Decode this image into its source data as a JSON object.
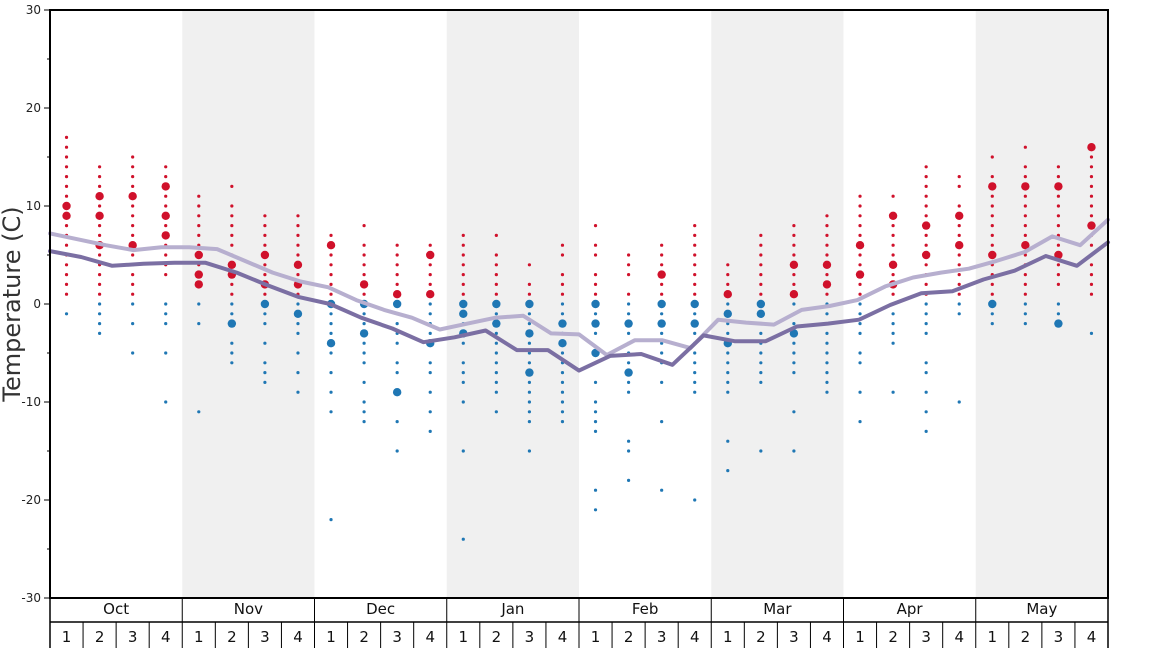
{
  "chart_data": {
    "type": "scatter",
    "title": "",
    "ylabel": "Temperature (C)",
    "xlabel": "",
    "ylim": [
      -30,
      30
    ],
    "yticks": [
      30,
      20,
      10,
      0,
      -10,
      -20,
      -30
    ],
    "months": [
      "Oct",
      "Nov",
      "Dec",
      "Jan",
      "Feb",
      "Mar",
      "Apr",
      "May"
    ],
    "weeks": [
      "1",
      "2",
      "3",
      "4"
    ],
    "colors": {
      "warm_dot": "#d0112b",
      "cold_dot": "#1f77b4",
      "upper_line": "#b7afcf",
      "lower_line": "#7b6fa3",
      "band_shade": "#f0f0f0"
    },
    "series": [
      {
        "kind": "line",
        "values": [
          7.2,
          6.6,
          6,
          5.5,
          5.8,
          5.8,
          5.6,
          4.4,
          3.2,
          2.3,
          1.7,
          0.4,
          -0.6,
          -1.4,
          -2.6,
          -2,
          -1.4,
          -1.2,
          -3,
          -3.1,
          -5.2,
          -3.7,
          -3.7,
          -4.5,
          -1.6,
          -1.9,
          -2.1,
          -0.6,
          -0.2,
          0.4,
          1.8,
          2.7,
          3.2,
          3.6,
          4.4,
          5.3,
          6.9,
          6,
          8.6
        ]
      },
      {
        "kind": "line",
        "values": [
          5.4,
          4.8,
          3.9,
          4.1,
          4.2,
          4.2,
          3.2,
          1.9,
          0.7,
          0,
          -1.4,
          -2.5,
          -3.9,
          -3.4,
          -2.7,
          -4.7,
          -4.7,
          -6.8,
          -5.3,
          -5.1,
          -6.2,
          -3.2,
          -3.8,
          -3.8,
          -2.3,
          -2,
          -1.6,
          -0.1,
          1.1,
          1.3,
          2.5,
          3.4,
          4.9,
          3.9,
          6.3
        ]
      }
    ],
    "dots": [
      {
        "x": 1,
        "values": [
          17,
          16,
          15,
          14,
          13,
          12,
          11,
          10,
          9,
          8,
          7,
          6,
          5,
          4,
          3,
          2,
          1,
          -1
        ],
        "big": [
          9,
          10
        ]
      },
      {
        "x": 2,
        "values": [
          14,
          13,
          12,
          11,
          10,
          9,
          8,
          7,
          6,
          5,
          4,
          3,
          2,
          1,
          0,
          -1,
          -2,
          -3
        ],
        "big": [
          11,
          9,
          6
        ]
      },
      {
        "x": 3,
        "values": [
          15,
          14,
          13,
          12,
          11,
          10,
          9,
          8,
          7,
          6,
          5,
          4,
          3,
          2,
          1,
          0,
          -2,
          -5
        ],
        "big": [
          11,
          6
        ]
      },
      {
        "x": 4,
        "values": [
          14,
          13,
          12,
          11,
          10,
          9,
          8,
          7,
          6,
          5,
          4,
          3,
          0,
          -1,
          -2,
          -5,
          -10
        ],
        "big": [
          12,
          9,
          7
        ]
      },
      {
        "x": 5,
        "values": [
          11,
          10,
          9,
          8,
          7,
          6,
          5,
          4,
          3,
          2,
          0,
          -2,
          -11
        ],
        "big": [
          5,
          2,
          3
        ]
      },
      {
        "x": 6,
        "values": [
          12,
          10,
          9,
          8,
          7,
          6,
          5,
          4,
          3,
          2,
          1,
          0,
          -1,
          -2,
          -4,
          -5,
          -6
        ],
        "big": [
          4,
          3,
          -2
        ]
      },
      {
        "x": 7,
        "values": [
          9,
          8,
          7,
          6,
          5,
          4,
          3,
          2,
          1,
          0,
          -1,
          -2,
          -4,
          -6,
          -7,
          -8
        ],
        "big": [
          5,
          2,
          0
        ]
      },
      {
        "x": 8,
        "values": [
          9,
          8,
          7,
          6,
          5,
          4,
          3,
          2,
          1,
          0,
          -1,
          -2,
          -3,
          -5,
          -7,
          -9
        ],
        "big": [
          4,
          2,
          -1
        ]
      },
      {
        "x": 9,
        "values": [
          7,
          6,
          5,
          4,
          3,
          2,
          1,
          0,
          -1,
          -2,
          -3,
          -4,
          -5,
          -7,
          -9,
          -11,
          -22
        ],
        "big": [
          6,
          0,
          -4
        ]
      },
      {
        "x": 10,
        "values": [
          8,
          6,
          5,
          4,
          3,
          2,
          1,
          0,
          -1,
          -2,
          -3,
          -4,
          -5,
          -6,
          -8,
          -10,
          -11,
          -12
        ],
        "big": [
          2,
          0,
          -3
        ]
      },
      {
        "x": 11,
        "values": [
          6,
          5,
          4,
          3,
          2,
          1,
          0,
          -1,
          -2,
          -3,
          -4,
          -6,
          -7,
          -9,
          -12,
          -15
        ],
        "big": [
          1,
          0,
          -9
        ]
      },
      {
        "x": 12,
        "values": [
          6,
          5,
          4,
          3,
          2,
          1,
          0,
          -1,
          -2,
          -3,
          -4,
          -6,
          -7,
          -9,
          -11,
          -13
        ],
        "big": [
          5,
          1,
          -4
        ]
      },
      {
        "x": 13,
        "values": [
          7,
          6,
          5,
          4,
          3,
          2,
          1,
          0,
          -1,
          -2,
          -3,
          -4,
          -6,
          -7,
          -8,
          -10,
          -15,
          -24
        ],
        "big": [
          0,
          -1,
          -3
        ]
      },
      {
        "x": 14,
        "values": [
          7,
          5,
          4,
          3,
          2,
          1,
          0,
          -1,
          -2,
          -3,
          -4,
          -5,
          -6,
          -7,
          -8,
          -9,
          -11
        ],
        "big": [
          0,
          -2
        ]
      },
      {
        "x": 15,
        "values": [
          4,
          2,
          1,
          0,
          -1,
          -2,
          -3,
          -4,
          -5,
          -6,
          -7,
          -8,
          -9,
          -10,
          -11,
          -12,
          -15
        ],
        "big": [
          0,
          -3,
          -7
        ]
      },
      {
        "x": 16,
        "values": [
          6,
          5,
          3,
          2,
          1,
          0,
          -1,
          -2,
          -3,
          -4,
          -5,
          -6,
          -7,
          -8,
          -9,
          -10,
          -11,
          -12
        ],
        "big": [
          -2,
          -4
        ]
      },
      {
        "x": 17,
        "values": [
          8,
          6,
          5,
          3,
          2,
          1,
          0,
          -1,
          -2,
          -3,
          -5,
          -6,
          -8,
          -10,
          -11,
          -12,
          -13,
          -19,
          -21
        ],
        "big": [
          0,
          -2,
          -5
        ]
      },
      {
        "x": 18,
        "values": [
          5,
          4,
          3,
          1,
          0,
          -1,
          -2,
          -3,
          -4,
          -5,
          -6,
          -7,
          -8,
          -9,
          -14,
          -15,
          -18
        ],
        "big": [
          -2,
          -7
        ]
      },
      {
        "x": 19,
        "values": [
          6,
          5,
          4,
          3,
          2,
          1,
          0,
          -1,
          -2,
          -3,
          -4,
          -5,
          -6,
          -8,
          -12,
          -19
        ],
        "big": [
          3,
          0,
          -2
        ]
      },
      {
        "x": 20,
        "values": [
          8,
          7,
          6,
          5,
          4,
          3,
          2,
          1,
          0,
          -1,
          -2,
          -3,
          -4,
          -5,
          -6,
          -7,
          -8,
          -9,
          -20
        ],
        "big": [
          0,
          -2
        ]
      },
      {
        "x": 21,
        "values": [
          4,
          3,
          2,
          1,
          0,
          -1,
          -2,
          -3,
          -4,
          -5,
          -6,
          -7,
          -8,
          -9,
          -14,
          -17
        ],
        "big": [
          1,
          -1,
          -4
        ]
      },
      {
        "x": 22,
        "values": [
          7,
          6,
          5,
          4,
          3,
          2,
          1,
          0,
          -1,
          -2,
          -3,
          -4,
          -5,
          -6,
          -7,
          -8,
          -15
        ],
        "big": [
          0,
          -1
        ]
      },
      {
        "x": 23,
        "values": [
          8,
          7,
          6,
          5,
          4,
          3,
          2,
          1,
          0,
          -1,
          -2,
          -3,
          -4,
          -5,
          -6,
          -7,
          -11,
          -15
        ],
        "big": [
          4,
          1,
          -3
        ]
      },
      {
        "x": 24,
        "values": [
          9,
          8,
          7,
          6,
          5,
          4,
          3,
          2,
          1,
          0,
          -1,
          -2,
          -3,
          -4,
          -5,
          -6,
          -7,
          -8,
          -9
        ],
        "big": [
          4,
          2
        ]
      },
      {
        "x": 25,
        "values": [
          11,
          10,
          9,
          8,
          7,
          6,
          5,
          4,
          3,
          2,
          1,
          0,
          -1,
          -2,
          -3,
          -5,
          -6,
          -9,
          -12
        ],
        "big": [
          6,
          3
        ]
      },
      {
        "x": 26,
        "values": [
          11,
          9,
          8,
          7,
          6,
          5,
          4,
          3,
          2,
          1,
          0,
          -1,
          -2,
          -3,
          -4,
          -9
        ],
        "big": [
          9,
          4,
          2
        ]
      },
      {
        "x": 27,
        "values": [
          14,
          13,
          12,
          11,
          10,
          9,
          8,
          7,
          6,
          5,
          4,
          3,
          2,
          1,
          0,
          -1,
          -2,
          -3,
          -6,
          -7,
          -9,
          -11,
          -13
        ],
        "big": [
          8,
          5
        ]
      },
      {
        "x": 28,
        "values": [
          13,
          12,
          10,
          9,
          8,
          7,
          6,
          5,
          4,
          3,
          2,
          1,
          0,
          -1,
          -10
        ],
        "big": [
          9,
          6
        ]
      },
      {
        "x": 29,
        "values": [
          15,
          13,
          12,
          11,
          10,
          9,
          8,
          7,
          6,
          5,
          4,
          3,
          2,
          1,
          0,
          -1,
          -2
        ],
        "big": [
          12,
          5,
          0
        ]
      },
      {
        "x": 30,
        "values": [
          16,
          14,
          13,
          12,
          11,
          10,
          9,
          8,
          7,
          6,
          5,
          4,
          3,
          2,
          1,
          0,
          -1,
          -2
        ],
        "big": [
          12,
          6
        ]
      },
      {
        "x": 31,
        "values": [
          14,
          13,
          12,
          11,
          10,
          9,
          8,
          7,
          6,
          5,
          4,
          3,
          2,
          0,
          -1,
          -2
        ],
        "big": [
          12,
          5,
          -2
        ]
      },
      {
        "x": 32,
        "values": [
          16,
          15,
          14,
          13,
          12,
          11,
          10,
          9,
          8,
          7,
          6,
          5,
          4,
          3,
          2,
          1,
          -3
        ],
        "big": [
          16,
          8
        ]
      }
    ]
  }
}
